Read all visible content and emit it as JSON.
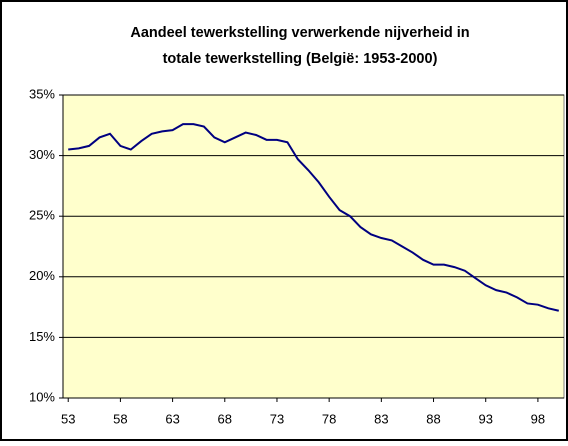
{
  "chart_data": {
    "type": "line",
    "title": [
      "Aandeel tewerkstelling verwerkende nijverheid in",
      "totale tewerkstelling (België: 1953-2000)"
    ],
    "categories": [
      "53",
      null,
      null,
      null,
      null,
      "58",
      null,
      null,
      null,
      null,
      "63",
      null,
      null,
      null,
      null,
      "68",
      null,
      null,
      null,
      null,
      "73",
      null,
      null,
      null,
      null,
      "78",
      null,
      null,
      null,
      null,
      "83",
      null,
      null,
      null,
      null,
      "88",
      null,
      null,
      null,
      null,
      "93",
      null,
      null,
      null,
      null,
      "98",
      null,
      null
    ],
    "series": [
      {
        "color": "#000080",
        "values": [
          30.5,
          30.6,
          30.8,
          31.5,
          31.8,
          30.8,
          30.5,
          31.2,
          31.8,
          32.0,
          32.1,
          32.6,
          32.6,
          32.4,
          31.5,
          31.1,
          31.5,
          31.9,
          31.7,
          31.3,
          31.3,
          31.1,
          29.7,
          28.8,
          27.8,
          26.6,
          25.5,
          25.0,
          24.1,
          23.5,
          23.2,
          23.0,
          22.5,
          22.0,
          21.4,
          21.0,
          21.0,
          20.8,
          20.5,
          19.9,
          19.3,
          18.9,
          18.7,
          18.3,
          17.8,
          17.7,
          17.4,
          17.2
        ]
      }
    ],
    "ylim": [
      10,
      35
    ],
    "yticks": [
      {
        "value": 10,
        "label": "10%"
      },
      {
        "value": 15,
        "label": "15%"
      },
      {
        "value": 20,
        "label": "20%"
      },
      {
        "value": 25,
        "label": "25%"
      },
      {
        "value": 30,
        "label": "30%"
      },
      {
        "value": 35,
        "label": "35%"
      }
    ],
    "grid": true,
    "plot_background": "#ffffcc"
  }
}
